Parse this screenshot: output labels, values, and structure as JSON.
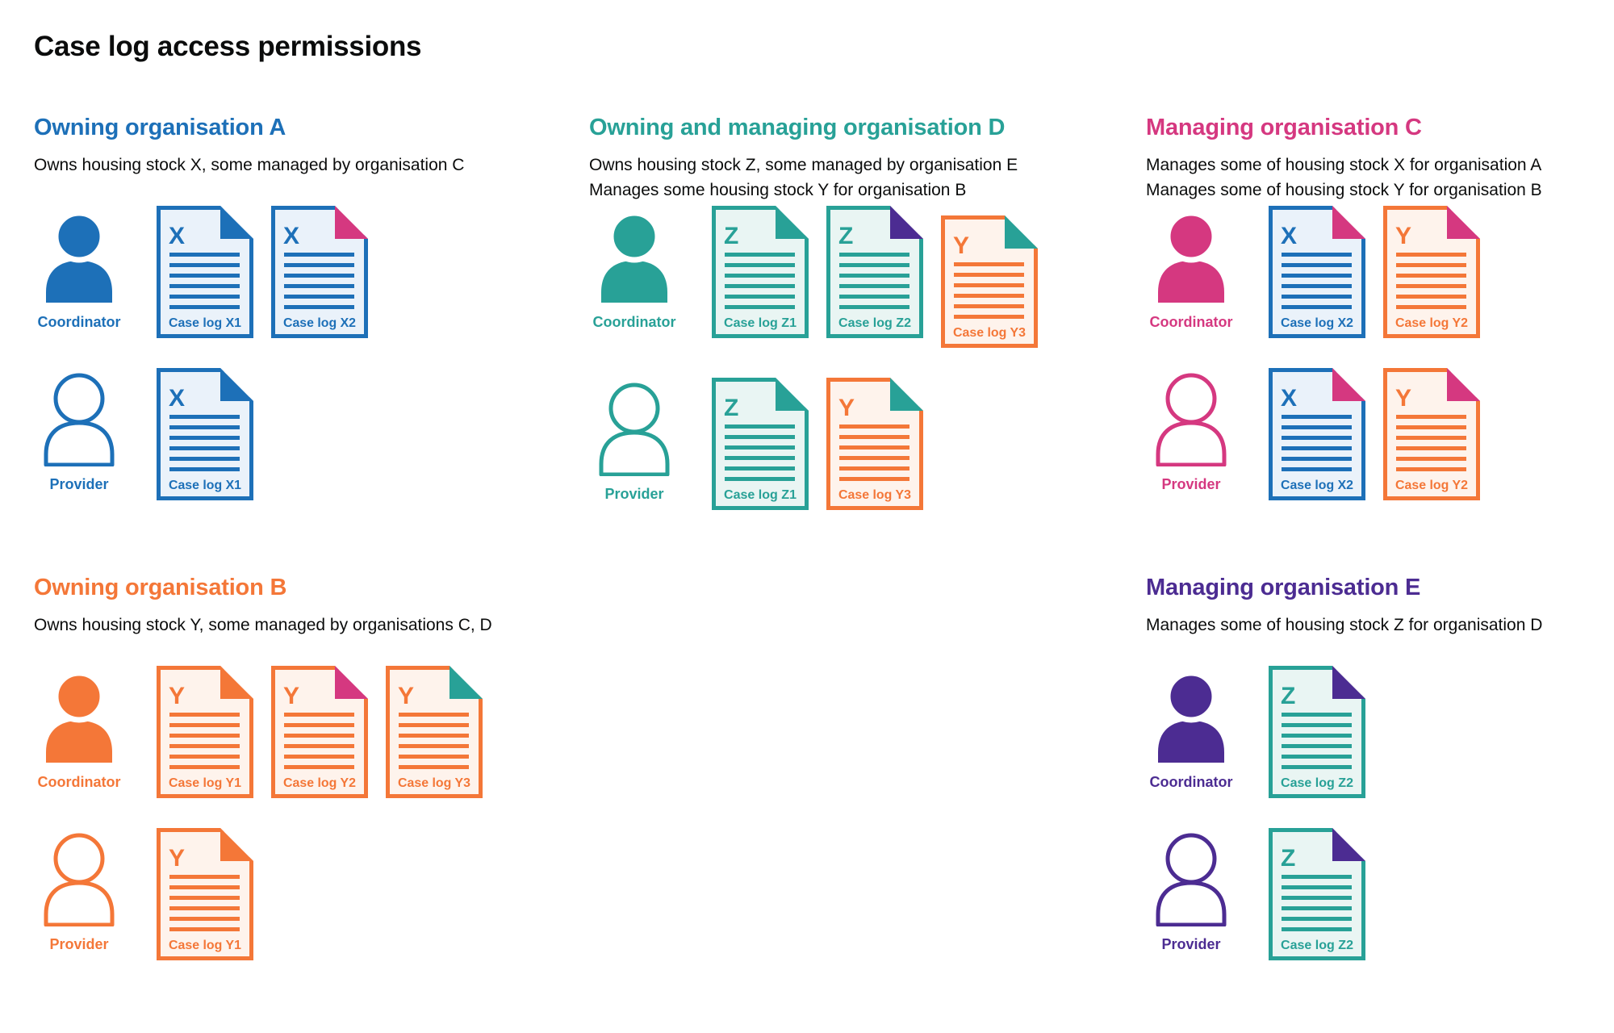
{
  "page": {
    "title": "Case log access permissions"
  },
  "colors": {
    "blue": "#1d70b8",
    "teal": "#28a197",
    "orange": "#f47738",
    "pink": "#d53880",
    "purple": "#4c2c92",
    "text": "#0b0c0c"
  },
  "doc_backgrounds": {
    "blue": "#eaf2fa",
    "teal": "#e9f5f3",
    "orange": "#fef3ec"
  },
  "organisations": [
    {
      "id": "a",
      "name": "Owning organisation A",
      "color": "blue",
      "description": [
        "Owns housing stock X, some managed by organisation C"
      ],
      "roles": [
        {
          "label": "Coordinator",
          "person": "filled",
          "docs": [
            {
              "letter": "X",
              "label": "Case log X1",
              "stock": "blue",
              "fold": "blue"
            },
            {
              "letter": "X",
              "label": "Case log X2",
              "stock": "blue",
              "fold": "pink"
            }
          ]
        },
        {
          "label": "Provider",
          "person": "outline",
          "docs": [
            {
              "letter": "X",
              "label": "Case log X1",
              "stock": "blue",
              "fold": "blue"
            }
          ]
        }
      ]
    },
    {
      "id": "d",
      "name": "Owning and managing organisation D",
      "color": "teal",
      "description": [
        "Owns housing stock Z, some managed by organisation E",
        "Manages some housing stock Y for organisation B"
      ],
      "roles": [
        {
          "label": "Coordinator",
          "person": "filled",
          "docs": [
            {
              "letter": "Z",
              "label": "Case log Z1",
              "stock": "teal",
              "fold": "teal"
            },
            {
              "letter": "Z",
              "label": "Case log Z2",
              "stock": "teal",
              "fold": "purple"
            },
            {
              "letter": "Y",
              "label": "Case log Y3",
              "stock": "orange",
              "fold": "teal",
              "lowered": true
            }
          ]
        },
        {
          "label": "Provider",
          "person": "outline",
          "docs": [
            {
              "letter": "Z",
              "label": "Case log Z1",
              "stock": "teal",
              "fold": "teal"
            },
            {
              "letter": "Y",
              "label": "Case log Y3",
              "stock": "orange",
              "fold": "teal"
            }
          ]
        }
      ]
    },
    {
      "id": "c",
      "name": "Managing organisation C",
      "color": "pink",
      "description": [
        "Manages some of housing stock X for organisation A",
        "Manages some of housing stock Y for organisation B"
      ],
      "roles": [
        {
          "label": "Coordinator",
          "person": "filled",
          "docs": [
            {
              "letter": "X",
              "label": "Case log X2",
              "stock": "blue",
              "fold": "pink"
            },
            {
              "letter": "Y",
              "label": "Case log Y2",
              "stock": "orange",
              "fold": "pink"
            }
          ]
        },
        {
          "label": "Provider",
          "person": "outline",
          "docs": [
            {
              "letter": "X",
              "label": "Case log X2",
              "stock": "blue",
              "fold": "pink"
            },
            {
              "letter": "Y",
              "label": "Case log Y2",
              "stock": "orange",
              "fold": "pink"
            }
          ]
        }
      ]
    },
    {
      "id": "b",
      "name": "Owning organisation B",
      "color": "orange",
      "description": [
        "Owns housing stock Y, some managed by organisations C, D"
      ],
      "roles": [
        {
          "label": "Coordinator",
          "person": "filled",
          "docs": [
            {
              "letter": "Y",
              "label": "Case log Y1",
              "stock": "orange",
              "fold": "orange"
            },
            {
              "letter": "Y",
              "label": "Case log Y2",
              "stock": "orange",
              "fold": "pink"
            },
            {
              "letter": "Y",
              "label": "Case log Y3",
              "stock": "orange",
              "fold": "teal"
            }
          ]
        },
        {
          "label": "Provider",
          "person": "outline",
          "docs": [
            {
              "letter": "Y",
              "label": "Case log Y1",
              "stock": "orange",
              "fold": "orange"
            }
          ]
        }
      ]
    },
    {
      "id": "e",
      "name": "Managing organisation E",
      "color": "purple",
      "description": [
        "Manages some of housing stock Z for organisation D"
      ],
      "roles": [
        {
          "label": "Coordinator",
          "person": "filled",
          "docs": [
            {
              "letter": "Z",
              "label": "Case log Z2",
              "stock": "teal",
              "fold": "purple"
            }
          ]
        },
        {
          "label": "Provider",
          "person": "outline",
          "docs": [
            {
              "letter": "Z",
              "label": "Case log Z2",
              "stock": "teal",
              "fold": "purple"
            }
          ]
        }
      ]
    }
  ]
}
